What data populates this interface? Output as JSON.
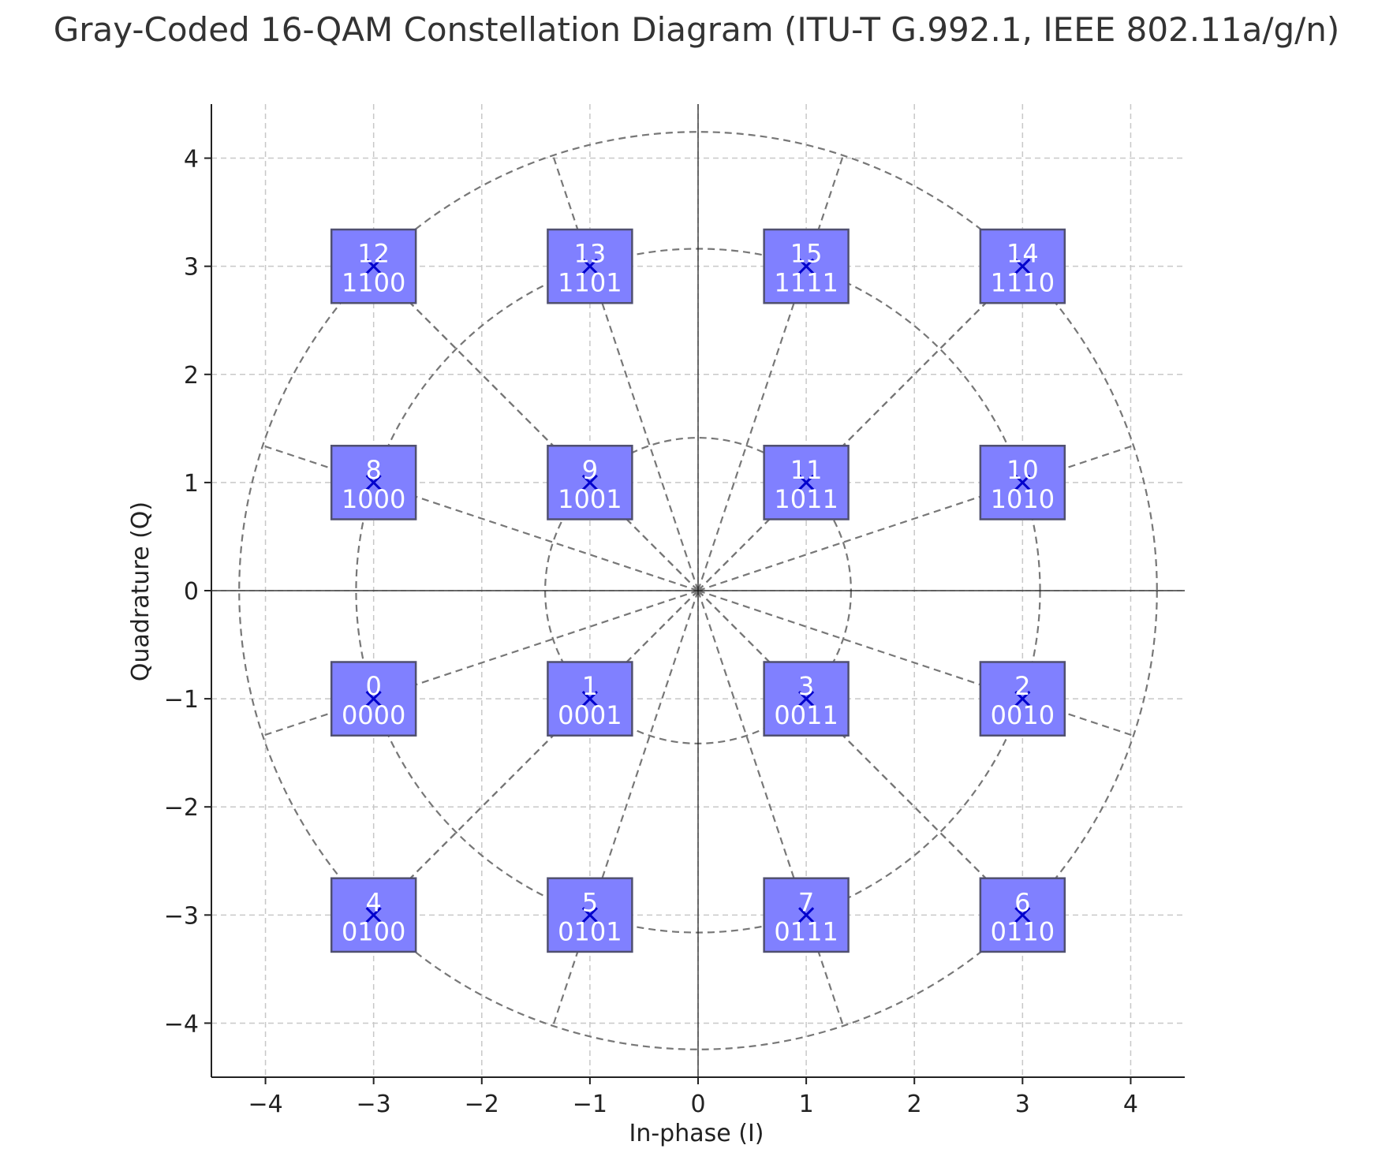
{
  "chart_data": {
    "type": "scatter",
    "title": "Gray-Coded 16-QAM Constellation Diagram (ITU-T G.992.1, IEEE 802.11a/g/n)",
    "xlabel": "In-phase (I)",
    "ylabel": "Quadrature (Q)",
    "xlim": [
      -4.5,
      4.5
    ],
    "ylim": [
      -4.5,
      4.5
    ],
    "xticks": [
      -4,
      -3,
      -2,
      -1,
      0,
      1,
      2,
      3,
      4
    ],
    "yticks": [
      -4,
      -3,
      -2,
      -1,
      0,
      1,
      2,
      3,
      4
    ],
    "xtick_labels": [
      "−4",
      "−3",
      "−2",
      "−1",
      "0",
      "1",
      "2",
      "3",
      "4"
    ],
    "ytick_labels": [
      "−4",
      "−3",
      "−2",
      "−1",
      "0",
      "1",
      "2",
      "3",
      "4"
    ],
    "grid": true,
    "reference_circle_radii": [
      1.414,
      3.162,
      4.243
    ],
    "points": [
      {
        "i": -3,
        "q": -1,
        "symbol": "0",
        "bits": "0000"
      },
      {
        "i": -1,
        "q": -1,
        "symbol": "1",
        "bits": "0001"
      },
      {
        "i": 3,
        "q": -1,
        "symbol": "2",
        "bits": "0010"
      },
      {
        "i": 1,
        "q": -1,
        "symbol": "3",
        "bits": "0011"
      },
      {
        "i": -3,
        "q": -3,
        "symbol": "4",
        "bits": "0100"
      },
      {
        "i": -1,
        "q": -3,
        "symbol": "5",
        "bits": "0101"
      },
      {
        "i": 3,
        "q": -3,
        "symbol": "6",
        "bits": "0110"
      },
      {
        "i": 1,
        "q": -3,
        "symbol": "7",
        "bits": "0111"
      },
      {
        "i": -3,
        "q": 1,
        "symbol": "8",
        "bits": "1000"
      },
      {
        "i": -1,
        "q": 1,
        "symbol": "9",
        "bits": "1001"
      },
      {
        "i": 3,
        "q": 1,
        "symbol": "10",
        "bits": "1010"
      },
      {
        "i": 1,
        "q": 1,
        "symbol": "11",
        "bits": "1011"
      },
      {
        "i": -3,
        "q": 3,
        "symbol": "12",
        "bits": "1100"
      },
      {
        "i": -1,
        "q": 3,
        "symbol": "13",
        "bits": "1101"
      },
      {
        "i": 3,
        "q": 3,
        "symbol": "14",
        "bits": "1110"
      },
      {
        "i": 1,
        "q": 3,
        "symbol": "15",
        "bits": "1111"
      }
    ],
    "colors": {
      "box_fill": "#8080ff",
      "box_edge": "#505070",
      "marker": "#0000cc",
      "guide_lines": "#777777",
      "label_text": "#ffffff"
    }
  }
}
